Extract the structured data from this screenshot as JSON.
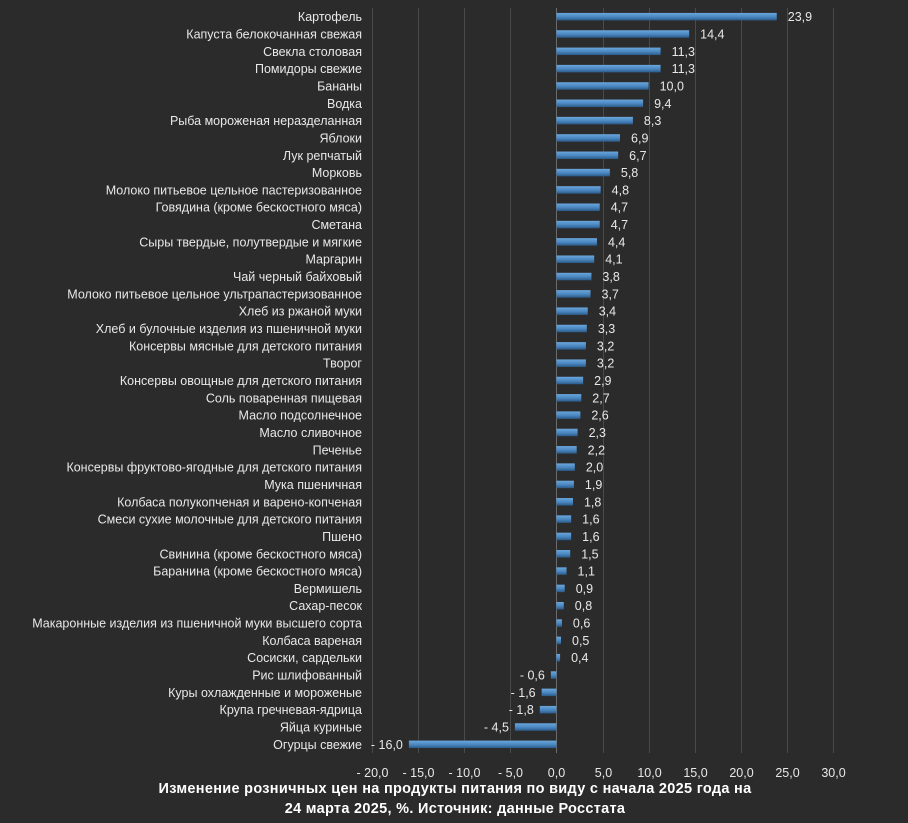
{
  "chart_data": {
    "type": "bar",
    "orientation": "horizontal",
    "title": "Изменение розничных цен на продукты питания по виду с начала 2025 года на 24 марта 2025, %. Источник: данные Росстата",
    "title_line1": "Изменение розничных цен на продукты питания по виду с начала 2025 года на",
    "title_line2": "24 марта 2025, %. Источник: данные Росстата",
    "xlim": [
      -20,
      30
    ],
    "xticks": [
      -20,
      -15,
      -10,
      -5,
      0,
      5,
      10,
      15,
      20,
      25,
      30
    ],
    "xtick_labels": [
      "- 20,0",
      "- 15,0",
      "- 10,0",
      "- 5,0",
      "0,0",
      "5,0",
      "10,0",
      "15,0",
      "20,0",
      "25,0",
      "30,0"
    ],
    "grid": "vertical",
    "colors": {
      "bar_top": "#5b9bd5",
      "bar_bottom": "#2e5f8f",
      "background": "#2b2b2b",
      "text": "#e8e8e8"
    },
    "categories": [
      "Картофель",
      "Капуста белокочанная свежая",
      "Свекла столовая",
      "Помидоры свежие",
      "Бананы",
      "Водка",
      "Рыба мороженая неразделанная",
      "Яблоки",
      "Лук репчатый",
      "Морковь",
      "Молоко питьевое цельное  пастеризованное",
      "Говядина (кроме бескостного мяса)",
      "Сметана",
      "Сыры твердые, полутвердые и мягкие",
      "Маргарин",
      "Чай черный байховый",
      "Молоко питьевое цельное  ультрапастеризованное",
      "Хлеб из ржаной муки",
      "Хлеб и булочные изделия из пшеничной муки",
      "Консервы мясные для детского питания",
      "Творог",
      "Консервы овощные для детского питания",
      "Соль поваренная пищевая",
      "Масло подсолнечное",
      "Масло сливочное",
      "Печенье",
      "Консервы фруктово-ягодные для детского питания",
      "Мука пшеничная",
      "Колбаса полукопченая и варено-копченая",
      "Смеси сухие молочные для детского питания",
      "Пшено",
      "Свинина (кроме бескостного мяса)",
      "Баранина (кроме бескостного мяса)",
      "Вермишель",
      "Сахар-песок",
      "Макаронные изделия из пшеничной муки высшего сорта",
      "Колбаса вареная",
      "Сосиски, сардельки",
      "Рис шлифованный",
      "Куры охлажденные и мороженые",
      "Крупа гречневая-ядрица",
      "Яйца куриные",
      "Огурцы свежие"
    ],
    "values": [
      23.9,
      14.4,
      11.3,
      11.3,
      10.0,
      9.4,
      8.3,
      6.9,
      6.7,
      5.8,
      4.8,
      4.7,
      4.7,
      4.4,
      4.1,
      3.8,
      3.7,
      3.4,
      3.3,
      3.2,
      3.2,
      2.9,
      2.7,
      2.6,
      2.3,
      2.2,
      2.0,
      1.9,
      1.8,
      1.6,
      1.6,
      1.5,
      1.1,
      0.9,
      0.8,
      0.6,
      0.5,
      0.4,
      -0.6,
      -1.6,
      -1.8,
      -4.5,
      -16.0
    ],
    "value_labels": [
      "23,9",
      "14,4",
      "11,3",
      "11,3",
      "10,0",
      "9,4",
      "8,3",
      "6,9",
      "6,7",
      "5,8",
      "4,8",
      "4,7",
      "4,7",
      "4,4",
      "4,1",
      "3,8",
      "3,7",
      "3,4",
      "3,3",
      "3,2",
      "3,2",
      "2,9",
      "2,7",
      "2,6",
      "2,3",
      "2,2",
      "2,0",
      "1,9",
      "1,8",
      "1,6",
      "1,6",
      "1,5",
      "1,1",
      "0,9",
      "0,8",
      "0,6",
      "0,5",
      "0,4",
      "- 0,6",
      "- 1,6",
      "- 1,8",
      "- 4,5",
      "- 16,0"
    ]
  }
}
